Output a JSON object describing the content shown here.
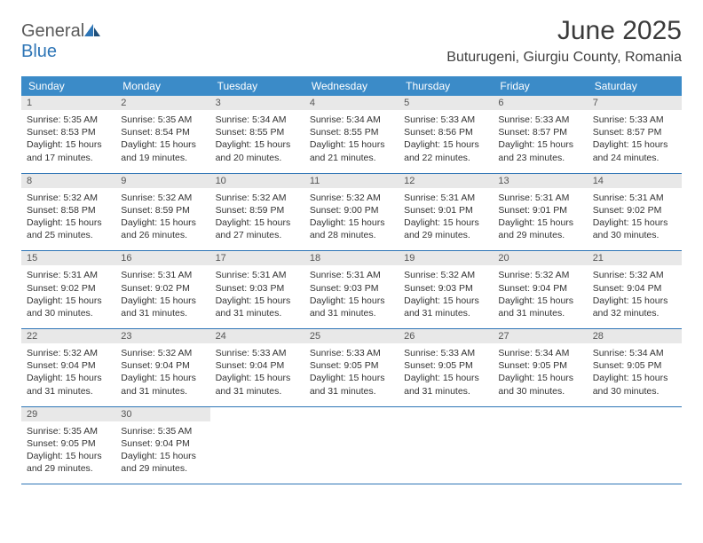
{
  "logo": {
    "text_general": "General",
    "text_blue": "Blue"
  },
  "title": "June 2025",
  "location": "Buturugeni, Giurgiu County, Romania",
  "colors": {
    "header_bg": "#3b8bc8",
    "header_text": "#ffffff",
    "daynum_bg": "#e8e8e8",
    "row_border": "#2e75b6",
    "logo_blue": "#2e75b6",
    "logo_gray": "#5a5a5a"
  },
  "weekdays": [
    "Sunday",
    "Monday",
    "Tuesday",
    "Wednesday",
    "Thursday",
    "Friday",
    "Saturday"
  ],
  "weeks": [
    [
      {
        "n": "1",
        "sr": "5:35 AM",
        "ss": "8:53 PM",
        "dl": "15 hours and 17 minutes."
      },
      {
        "n": "2",
        "sr": "5:35 AM",
        "ss": "8:54 PM",
        "dl": "15 hours and 19 minutes."
      },
      {
        "n": "3",
        "sr": "5:34 AM",
        "ss": "8:55 PM",
        "dl": "15 hours and 20 minutes."
      },
      {
        "n": "4",
        "sr": "5:34 AM",
        "ss": "8:55 PM",
        "dl": "15 hours and 21 minutes."
      },
      {
        "n": "5",
        "sr": "5:33 AM",
        "ss": "8:56 PM",
        "dl": "15 hours and 22 minutes."
      },
      {
        "n": "6",
        "sr": "5:33 AM",
        "ss": "8:57 PM",
        "dl": "15 hours and 23 minutes."
      },
      {
        "n": "7",
        "sr": "5:33 AM",
        "ss": "8:57 PM",
        "dl": "15 hours and 24 minutes."
      }
    ],
    [
      {
        "n": "8",
        "sr": "5:32 AM",
        "ss": "8:58 PM",
        "dl": "15 hours and 25 minutes."
      },
      {
        "n": "9",
        "sr": "5:32 AM",
        "ss": "8:59 PM",
        "dl": "15 hours and 26 minutes."
      },
      {
        "n": "10",
        "sr": "5:32 AM",
        "ss": "8:59 PM",
        "dl": "15 hours and 27 minutes."
      },
      {
        "n": "11",
        "sr": "5:32 AM",
        "ss": "9:00 PM",
        "dl": "15 hours and 28 minutes."
      },
      {
        "n": "12",
        "sr": "5:31 AM",
        "ss": "9:01 PM",
        "dl": "15 hours and 29 minutes."
      },
      {
        "n": "13",
        "sr": "5:31 AM",
        "ss": "9:01 PM",
        "dl": "15 hours and 29 minutes."
      },
      {
        "n": "14",
        "sr": "5:31 AM",
        "ss": "9:02 PM",
        "dl": "15 hours and 30 minutes."
      }
    ],
    [
      {
        "n": "15",
        "sr": "5:31 AM",
        "ss": "9:02 PM",
        "dl": "15 hours and 30 minutes."
      },
      {
        "n": "16",
        "sr": "5:31 AM",
        "ss": "9:02 PM",
        "dl": "15 hours and 31 minutes."
      },
      {
        "n": "17",
        "sr": "5:31 AM",
        "ss": "9:03 PM",
        "dl": "15 hours and 31 minutes."
      },
      {
        "n": "18",
        "sr": "5:31 AM",
        "ss": "9:03 PM",
        "dl": "15 hours and 31 minutes."
      },
      {
        "n": "19",
        "sr": "5:32 AM",
        "ss": "9:03 PM",
        "dl": "15 hours and 31 minutes."
      },
      {
        "n": "20",
        "sr": "5:32 AM",
        "ss": "9:04 PM",
        "dl": "15 hours and 31 minutes."
      },
      {
        "n": "21",
        "sr": "5:32 AM",
        "ss": "9:04 PM",
        "dl": "15 hours and 32 minutes."
      }
    ],
    [
      {
        "n": "22",
        "sr": "5:32 AM",
        "ss": "9:04 PM",
        "dl": "15 hours and 31 minutes."
      },
      {
        "n": "23",
        "sr": "5:32 AM",
        "ss": "9:04 PM",
        "dl": "15 hours and 31 minutes."
      },
      {
        "n": "24",
        "sr": "5:33 AM",
        "ss": "9:04 PM",
        "dl": "15 hours and 31 minutes."
      },
      {
        "n": "25",
        "sr": "5:33 AM",
        "ss": "9:05 PM",
        "dl": "15 hours and 31 minutes."
      },
      {
        "n": "26",
        "sr": "5:33 AM",
        "ss": "9:05 PM",
        "dl": "15 hours and 31 minutes."
      },
      {
        "n": "27",
        "sr": "5:34 AM",
        "ss": "9:05 PM",
        "dl": "15 hours and 30 minutes."
      },
      {
        "n": "28",
        "sr": "5:34 AM",
        "ss": "9:05 PM",
        "dl": "15 hours and 30 minutes."
      }
    ],
    [
      {
        "n": "29",
        "sr": "5:35 AM",
        "ss": "9:05 PM",
        "dl": "15 hours and 29 minutes."
      },
      {
        "n": "30",
        "sr": "5:35 AM",
        "ss": "9:04 PM",
        "dl": "15 hours and 29 minutes."
      },
      null,
      null,
      null,
      null,
      null
    ]
  ],
  "labels": {
    "sunrise": "Sunrise: ",
    "sunset": "Sunset: ",
    "daylight": "Daylight: "
  }
}
